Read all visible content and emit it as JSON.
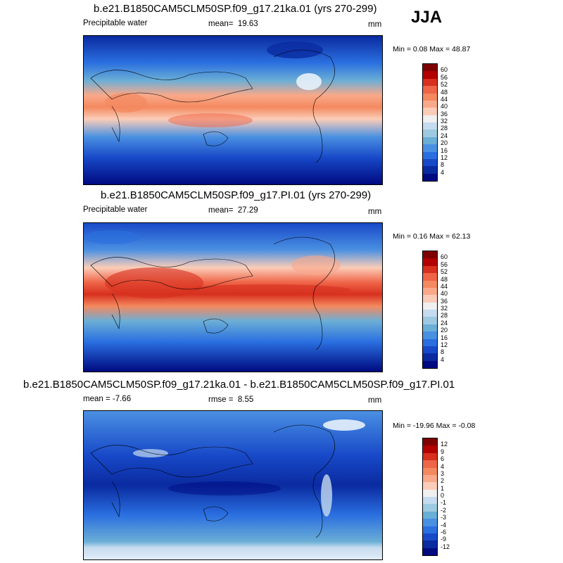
{
  "season": "JJA",
  "panels": [
    {
      "title": "b.e21.B1850CAM5CLM50SP.f09_g17.21ka.01 (yrs 270-299)",
      "left_label": "Precipitable water",
      "stat_label": "mean=",
      "stat_value": "19.63",
      "units": "mm",
      "minmax": "Min =   0.08 Max =  48.87",
      "colorbar_labels": [
        "60",
        "56",
        "52",
        "48",
        "44",
        "40",
        "36",
        "32",
        "28",
        "24",
        "20",
        "16",
        "12",
        "8",
        "4"
      ],
      "colorbar_colors": [
        "#7f0000",
        "#b30000",
        "#d7301f",
        "#ef6548",
        "#f4895f",
        "#f9a98a",
        "#fbcdb8",
        "#f0f0f0",
        "#c6dbef",
        "#9ecae1",
        "#6baed6",
        "#4a90e2",
        "#2a6fe0",
        "#1849c8",
        "#0a2aa0",
        "#000a80"
      ]
    },
    {
      "title": "b.e21.B1850CAM5CLM50SP.f09_g17.PI.01 (yrs 270-299)",
      "left_label": "Precipitable water",
      "stat_label": "mean=",
      "stat_value": "27.29",
      "units": "mm",
      "minmax": "Min =   0.16 Max =  62.13",
      "colorbar_labels": [
        "60",
        "56",
        "52",
        "48",
        "44",
        "40",
        "36",
        "32",
        "28",
        "24",
        "20",
        "16",
        "12",
        "8",
        "4"
      ],
      "colorbar_colors": [
        "#7f0000",
        "#b30000",
        "#d7301f",
        "#ef6548",
        "#f4895f",
        "#f9a98a",
        "#fbcdb8",
        "#f0f0f0",
        "#c6dbef",
        "#9ecae1",
        "#6baed6",
        "#4a90e2",
        "#2a6fe0",
        "#1849c8",
        "#0a2aa0",
        "#000a80"
      ]
    },
    {
      "title": "b.e21.B1850CAM5CLM50SP.f09_g17.21ka.01 - b.e21.B1850CAM5CLM50SP.f09_g17.PI.01",
      "left_label": "mean =  -7.66",
      "stat_label": "rmse =",
      "stat_value": "8.55",
      "units": "mm",
      "minmax": "Min = -19.96 Max =  -0.08",
      "colorbar_labels": [
        "12",
        "9",
        "6",
        "4",
        "3",
        "2",
        "1",
        "0",
        "-1",
        "-2",
        "-3",
        "-4",
        "-6",
        "-9",
        "-12"
      ],
      "colorbar_colors": [
        "#7f0000",
        "#b30000",
        "#d7301f",
        "#ef6548",
        "#f4895f",
        "#f9a98a",
        "#fbcdb8",
        "#f0f0f0",
        "#c6dbef",
        "#9ecae1",
        "#6baed6",
        "#4a90e2",
        "#2a6fe0",
        "#1849c8",
        "#0a2aa0",
        "#000a80"
      ]
    }
  ]
}
